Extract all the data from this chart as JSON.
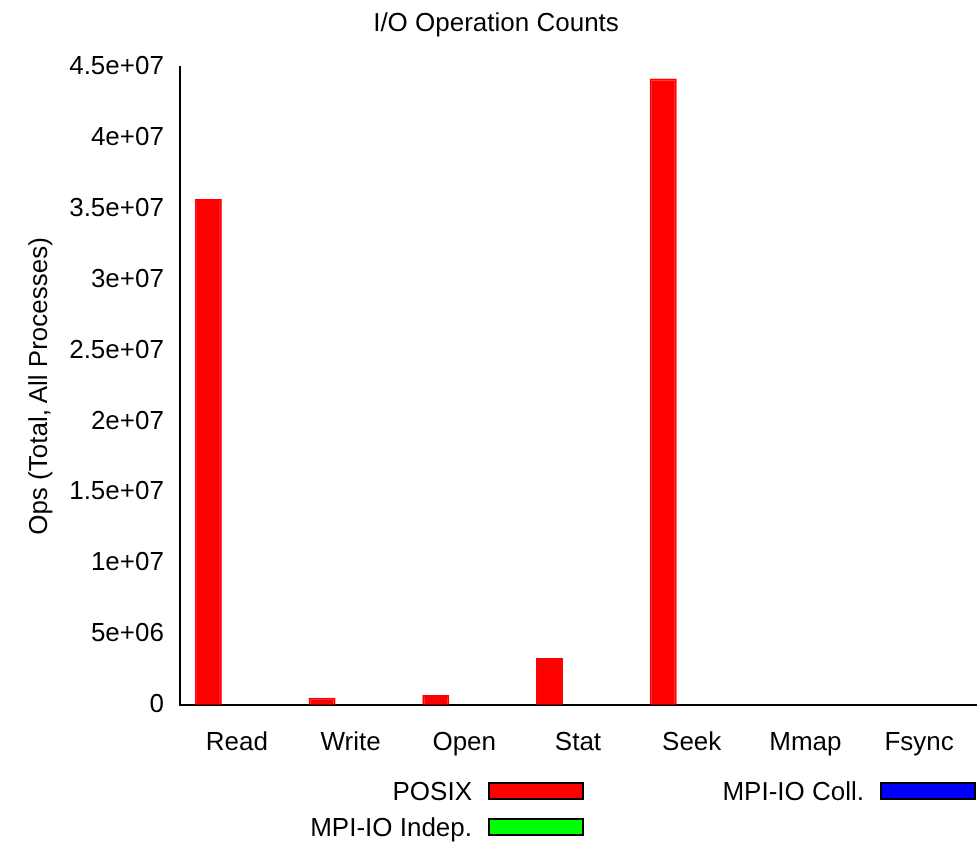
{
  "chart_data": {
    "type": "bar",
    "title": "I/O Operation Counts",
    "ylabel": "Ops (Total, All Processes)",
    "categories": [
      "Read",
      "Write",
      "Open",
      "Stat",
      "Seek",
      "Mmap",
      "Fsync"
    ],
    "series": [
      {
        "name": "POSIX",
        "color": "#ff0000",
        "values": [
          35700000,
          500000,
          700000,
          3300000,
          44200000,
          0,
          0
        ]
      },
      {
        "name": "MPI-IO Indep.",
        "color": "#00ff00",
        "values": [
          0,
          0,
          0,
          0,
          0,
          0,
          0
        ]
      },
      {
        "name": "MPI-IO Coll.",
        "color": "#0000ff",
        "values": [
          0,
          0,
          0,
          0,
          0,
          0,
          0
        ]
      }
    ],
    "ylim": [
      0,
      45000000
    ],
    "yticks": [
      {
        "value": 0,
        "label": "0"
      },
      {
        "value": 5000000,
        "label": "5e+06"
      },
      {
        "value": 10000000,
        "label": "1e+07"
      },
      {
        "value": 15000000,
        "label": "1.5e+07"
      },
      {
        "value": 20000000,
        "label": "2e+07"
      },
      {
        "value": 25000000,
        "label": "2.5e+07"
      },
      {
        "value": 30000000,
        "label": "3e+07"
      },
      {
        "value": 35000000,
        "label": "3.5e+07"
      },
      {
        "value": 40000000,
        "label": "4e+07"
      },
      {
        "value": 45000000,
        "label": "4.5e+07"
      }
    ],
    "grid": false,
    "legend": "bottom"
  }
}
